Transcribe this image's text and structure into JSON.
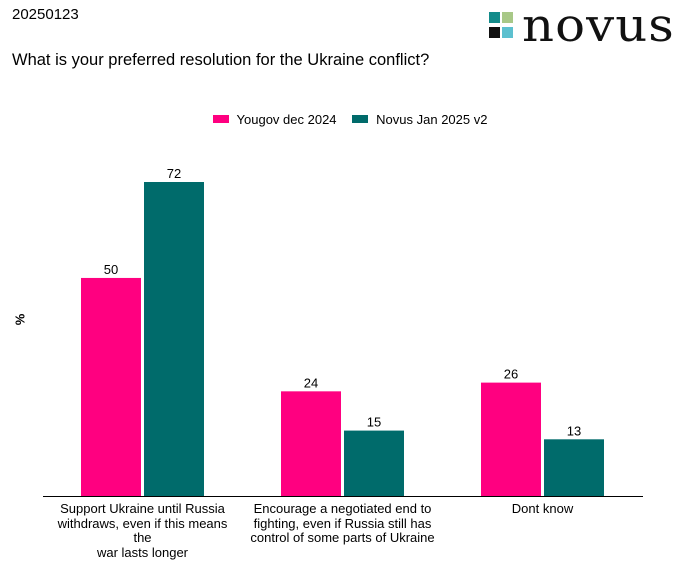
{
  "header": {
    "date": "20250123",
    "question": "What is your preferred resolution for the Ukraine conflict?",
    "brand": "novus",
    "brand_colors": [
      "#138b8a",
      "#a8c887",
      "#111111",
      "#5cc0cf"
    ]
  },
  "chart_data": {
    "type": "bar",
    "title": "What is your preferred resolution for the Ukraine conflict?",
    "ylabel": "%",
    "xlabel": "",
    "ylim": [
      0,
      72
    ],
    "grid": false,
    "legend_position": "top-center",
    "categories": [
      [
        "Support Ukraine until Russia",
        "withdraws, even if this means the",
        "war lasts longer"
      ],
      [
        "Encourage a negotiated end to",
        "fighting, even if Russia still has",
        "control of some parts of Ukraine"
      ],
      [
        "Dont know"
      ]
    ],
    "series": [
      {
        "name": "Yougov dec 2024",
        "color": "#ff0080",
        "values": [
          50,
          24,
          26
        ]
      },
      {
        "name": "Novus Jan 2025 v2",
        "color": "#006b6b",
        "values": [
          72,
          15,
          13
        ]
      }
    ]
  }
}
